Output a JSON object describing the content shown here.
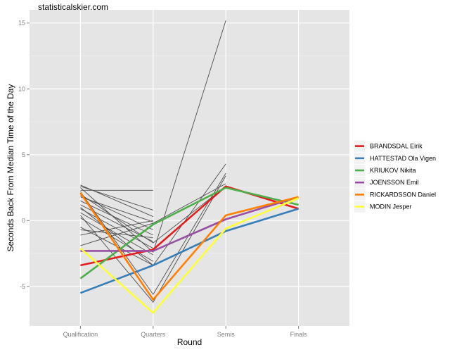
{
  "chart_data": {
    "type": "line",
    "caption": "statisticalskier.com",
    "xlabel": "Round",
    "ylabel": "Seconds Back From Median Time of the Day",
    "categories": [
      "Qualification",
      "Quarters",
      "Semis",
      "Finals"
    ],
    "ylim": [
      -8,
      16
    ],
    "yticks": [
      -5,
      0,
      5,
      10,
      15
    ],
    "grid": true,
    "legend_position": "right",
    "background_series": [
      {
        "values": [
          2.6,
          0.8,
          null,
          null
        ]
      },
      {
        "values": [
          2.3,
          2.3,
          null,
          null
        ]
      },
      {
        "values": [
          2.7,
          0.3,
          null,
          null
        ]
      },
      {
        "values": [
          1.8,
          -0.1,
          null,
          null
        ]
      },
      {
        "values": [
          1.9,
          -0.7,
          null,
          null
        ]
      },
      {
        "values": [
          1.5,
          -1.1,
          null,
          null
        ]
      },
      {
        "values": [
          1.2,
          -1.6,
          null,
          null
        ]
      },
      {
        "values": [
          0.9,
          -2.1,
          null,
          null
        ]
      },
      {
        "values": [
          0.6,
          -2.6,
          null,
          null
        ]
      },
      {
        "values": [
          0.2,
          -3.1,
          null,
          null
        ]
      },
      {
        "values": [
          -0.5,
          -3.4,
          null,
          null
        ]
      },
      {
        "values": [
          -1.1,
          0.0,
          null,
          null
        ]
      },
      {
        "values": [
          -0.7,
          -1.3,
          null,
          null
        ]
      },
      {
        "values": [
          2.5,
          -2.4,
          15.2,
          null
        ]
      },
      {
        "values": [
          1.0,
          -3.4,
          4.3,
          null
        ]
      },
      {
        "values": [
          2.2,
          -5.6,
          3.6,
          null
        ]
      },
      {
        "values": [
          0.4,
          -6.2,
          3.4,
          null
        ]
      },
      {
        "values": [
          -1.9,
          -0.2,
          2.8,
          null
        ]
      },
      {
        "values": [
          2.0,
          -1.7,
          2.6,
          null
        ]
      }
    ],
    "series": [
      {
        "name": "BRANDSDAL Eirik",
        "color": "#E41A1C",
        "values": [
          -3.4,
          -2.2,
          2.6,
          0.9
        ]
      },
      {
        "name": "HATTESTAD Ola Vigen",
        "color": "#377EB8",
        "values": [
          -5.5,
          -3.4,
          -0.8,
          0.9
        ]
      },
      {
        "name": "KRIUKOV Nikita",
        "color": "#4DAF4A",
        "values": [
          -4.4,
          -0.3,
          2.5,
          1.2
        ]
      },
      {
        "name": "JOENSSON Emil",
        "color": "#984EA3",
        "values": [
          -2.3,
          -2.3,
          0.1,
          1.8
        ]
      },
      {
        "name": "RICKARDSSON Daniel",
        "color": "#FF7F00",
        "values": [
          2.1,
          -6.0,
          0.4,
          1.8
        ]
      },
      {
        "name": "MODIN Jesper",
        "color": "#FFFF33",
        "values": [
          -2.1,
          -7.0,
          -0.6,
          1.7
        ]
      }
    ]
  }
}
